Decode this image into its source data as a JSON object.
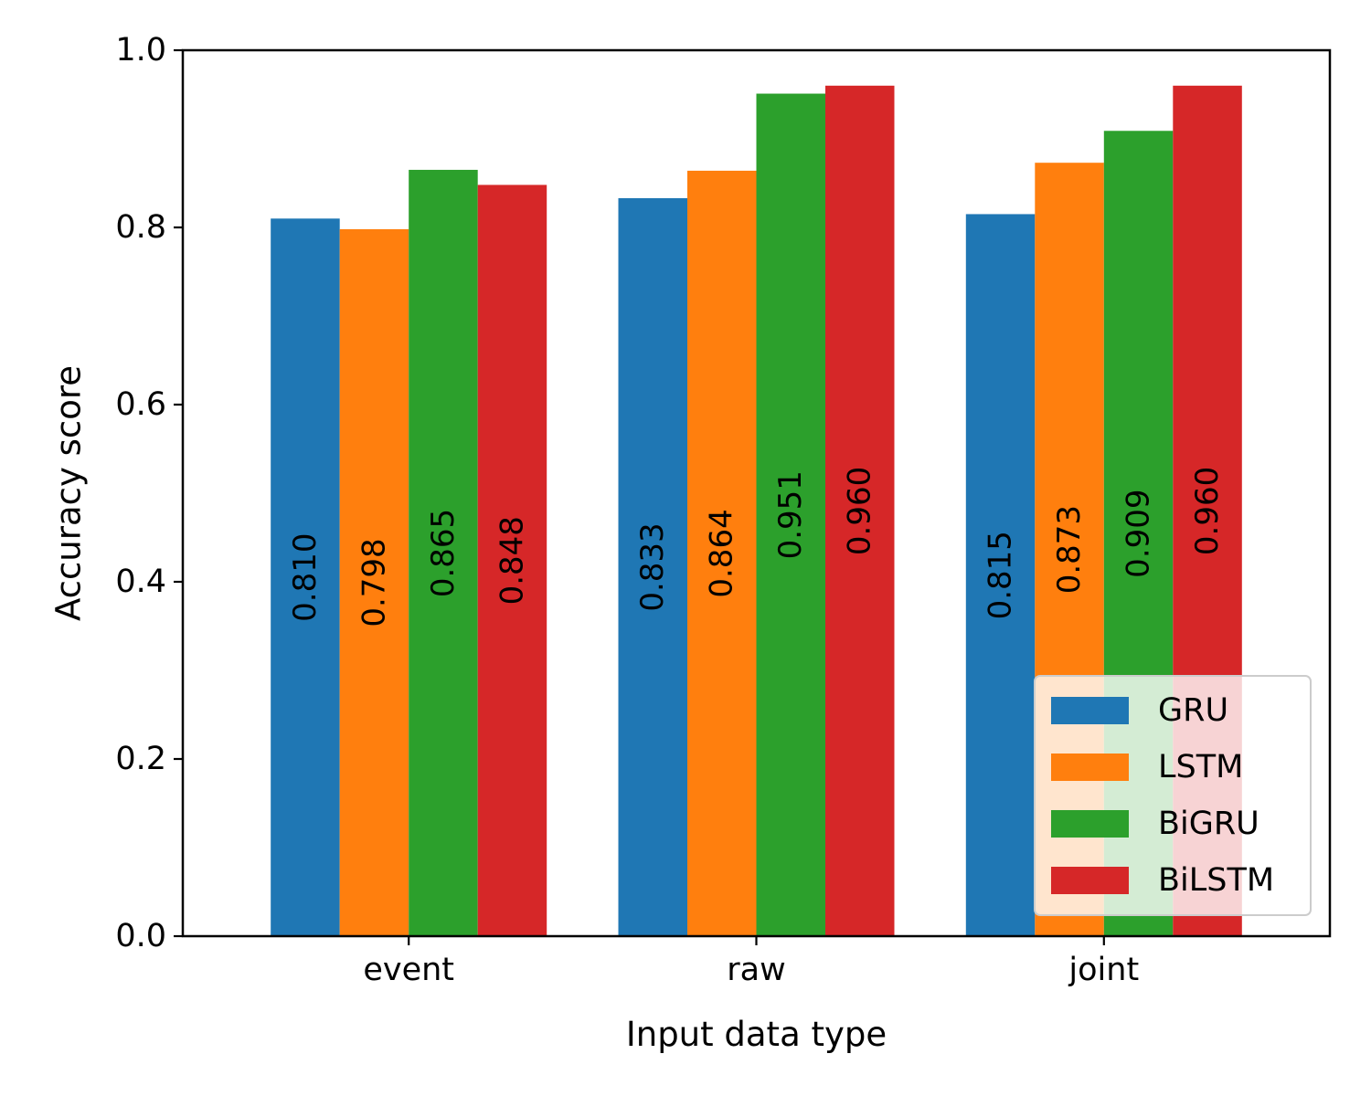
{
  "chart_data": {
    "type": "bar",
    "title": "",
    "xlabel": "Input data type",
    "ylabel": "Accuracy score",
    "categories": [
      "event",
      "raw",
      "joint"
    ],
    "ylim": [
      0,
      1.0
    ],
    "yticks": [
      0.0,
      0.2,
      0.4,
      0.6,
      0.8,
      1.0
    ],
    "ytick_labels": [
      "0.0",
      "0.2",
      "0.4",
      "0.6",
      "0.8",
      "1.0"
    ],
    "grid": false,
    "legend_position": "bottom-right",
    "series": [
      {
        "name": "GRU",
        "color": "#1f77b4",
        "values": [
          0.81,
          0.833,
          0.815
        ],
        "labels": [
          "0.810",
          "0.833",
          "0.815"
        ]
      },
      {
        "name": "LSTM",
        "color": "#ff7f0e",
        "values": [
          0.798,
          0.864,
          0.873
        ],
        "labels": [
          "0.798",
          "0.864",
          "0.873"
        ]
      },
      {
        "name": "BiGRU",
        "color": "#2ca02c",
        "values": [
          0.865,
          0.951,
          0.909
        ],
        "labels": [
          "0.865",
          "0.951",
          "0.909"
        ]
      },
      {
        "name": "BiLSTM",
        "color": "#d62728",
        "values": [
          0.848,
          0.96,
          0.96
        ],
        "labels": [
          "0.848",
          "0.960",
          "0.960"
        ]
      }
    ]
  }
}
